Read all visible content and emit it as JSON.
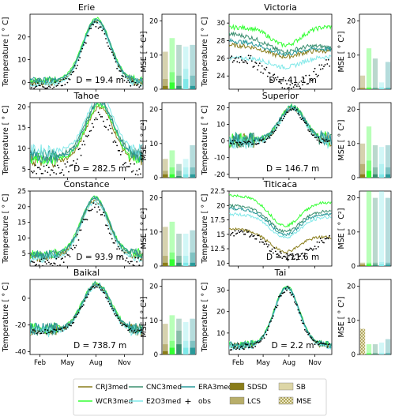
{
  "figure": {
    "temp_ylabel": "Temperature [ ° C]",
    "mse_ylabel": "MSE [ ° C²]",
    "month_ticks": [
      "Feb",
      "May",
      "Aug",
      "Nov"
    ]
  },
  "legend": {
    "items": [
      {
        "label": "CRJ3med",
        "kind": "line",
        "color": "#8a7d1a"
      },
      {
        "label": "WCR3med",
        "kind": "line",
        "color": "#33ff33"
      },
      {
        "label": "CNC3med",
        "kind": "line",
        "color": "#3a8f6f"
      },
      {
        "label": "E2O3med",
        "kind": "line",
        "color": "#7fe8e8"
      },
      {
        "label": "ERA3med",
        "kind": "line",
        "color": "#2a9a9a"
      },
      {
        "label": "obs",
        "kind": "plus",
        "color": "#000000"
      },
      {
        "label": "SDSD",
        "kind": "bar",
        "color": "#8a7d1a"
      },
      {
        "label": "LCS",
        "kind": "bar",
        "color": "#b8ae6a"
      },
      {
        "label": "SB",
        "kind": "bar",
        "color": "#ddd6a6"
      },
      {
        "label": "MSE",
        "kind": "hatch",
        "color": "#eeeac8"
      }
    ]
  },
  "chart_data": [
    {
      "type": "line",
      "title": "Erie",
      "annotation": "D = 19.4 m",
      "xticks": [
        "Feb",
        "May",
        "Aug",
        "Nov"
      ],
      "ylim": [
        -3,
        30
      ],
      "yticks": [
        0,
        10,
        20
      ],
      "min": 0,
      "peak": 27,
      "peak_day": 215,
      "model_offsets": [
        0,
        1.2,
        0.4,
        -0.5,
        0.8
      ],
      "obs_offset": -1.5
    },
    {
      "type": "line",
      "title": "Victoria",
      "annotation": "D = 41.1 m",
      "xticks": [
        "Feb",
        "May",
        "Aug",
        "Nov"
      ],
      "ylim": [
        22.5,
        31
      ],
      "yticks": [
        24,
        26,
        28,
        30
      ],
      "series_levels": [
        {
          "name": "CRJ3med",
          "start": 27.5,
          "dip": 26.2,
          "end": 26.8
        },
        {
          "name": "WCR3med",
          "start": 29.5,
          "dip": 27.5,
          "end": 29.6
        },
        {
          "name": "CNC3med",
          "start": 28.8,
          "dip": 26.8,
          "end": 27.2
        },
        {
          "name": "E2O3med",
          "start": 26.0,
          "dip": 25.0,
          "end": 26.2
        },
        {
          "name": "ERA3med",
          "start": 28.0,
          "dip": 26.5,
          "end": 27.0
        }
      ],
      "obs_range": [
        23.0,
        26.0
      ]
    },
    {
      "type": "line",
      "title": "Tahoe",
      "annotation": "D = 282.5 m",
      "xticks": [
        "Feb",
        "May",
        "Aug",
        "Nov"
      ],
      "ylim": [
        3,
        21
      ],
      "yticks": [
        5,
        10,
        15,
        20
      ],
      "min": 7,
      "peak": 20,
      "peak_day": 225,
      "model_offsets": [
        0,
        0.5,
        1.5,
        2.5,
        1.0
      ],
      "obs_offset": -2.5
    },
    {
      "type": "line",
      "title": "Superior",
      "annotation": "D = 146.7 m",
      "xticks": [
        "Feb",
        "May",
        "Aug",
        "Nov"
      ],
      "ylim": [
        -22,
        23
      ],
      "yticks": [
        -20,
        -10,
        0,
        10,
        20
      ],
      "min": 0,
      "peak": 20,
      "peak_day": 225,
      "model_offsets": [
        0,
        0.8,
        0.4,
        -0.6,
        0.6
      ],
      "obs_offset": -1.0
    },
    {
      "type": "line",
      "title": "Constance",
      "annotation": "D = 93.9 m",
      "xticks": [
        "Feb",
        "May",
        "Aug",
        "Nov"
      ],
      "ylim": [
        1,
        25
      ],
      "yticks": [
        5,
        10,
        15,
        20,
        25
      ],
      "min": 4,
      "peak": 22,
      "peak_day": 210,
      "model_offsets": [
        0,
        1.0,
        0.5,
        -0.5,
        0.8
      ],
      "obs_offset": -2.0
    },
    {
      "type": "line",
      "title": "Titicaca",
      "annotation": "D = 111.6 m",
      "xticks": [
        "Feb",
        "May",
        "Aug",
        "Nov"
      ],
      "ylim": [
        9.5,
        22.5
      ],
      "yticks": [
        10.0,
        12.5,
        15.0,
        17.5,
        20.0,
        22.5
      ],
      "series_levels": [
        {
          "name": "CRJ3med",
          "start": 16.0,
          "dip": 12.0,
          "end": 14.5
        },
        {
          "name": "WCR3med",
          "start": 21.8,
          "dip": 16.5,
          "end": 20.5
        },
        {
          "name": "CNC3med",
          "start": 20.0,
          "dip": 15.5,
          "end": 19.0
        },
        {
          "name": "E2O3med",
          "start": 18.5,
          "dip": 14.5,
          "end": 18.0
        },
        {
          "name": "ERA3med",
          "start": 19.5,
          "dip": 15.0,
          "end": 18.5
        }
      ],
      "obs_range": [
        11.0,
        15.5
      ]
    },
    {
      "type": "line",
      "title": "Baikal",
      "annotation": "D = 738.7 m",
      "xticks": [
        "Feb",
        "May",
        "Aug",
        "Nov"
      ],
      "ylim": [
        -42,
        14
      ],
      "yticks": [
        -40,
        -20,
        0
      ],
      "min": -24,
      "peak": 10,
      "peak_day": 215,
      "model_offsets": [
        0,
        1.5,
        0.5,
        -1.0,
        1.0
      ],
      "obs_offset": -1.0
    },
    {
      "type": "line",
      "title": "Tai",
      "annotation": "D = 2.2 m",
      "xticks": [
        "Feb",
        "May",
        "Aug",
        "Nov"
      ],
      "ylim": [
        0,
        35
      ],
      "yticks": [
        10,
        20,
        30
      ],
      "min": 4,
      "peak": 31,
      "peak_day": 205,
      "model_offsets": [
        0,
        0.8,
        0.3,
        -0.4,
        0.5
      ],
      "obs_offset": -0.5
    },
    {
      "type": "bar",
      "lake": "Erie",
      "ylim": [
        0,
        22
      ],
      "yticks": [
        0,
        10,
        20
      ],
      "values": [
        11.0,
        15.0,
        13.0,
        12.5,
        13.0
      ],
      "sdsd": [
        1,
        2,
        1,
        3,
        1
      ],
      "lcs": [
        3,
        5,
        4,
        6,
        4
      ]
    },
    {
      "type": "bar",
      "lake": "Victoria",
      "ylim": [
        0,
        22
      ],
      "yticks": [
        0,
        10,
        20
      ],
      "values": [
        4.0,
        12.0,
        9.0,
        2.0,
        8.0
      ],
      "sdsd": [
        0.2,
        0.3,
        0.2,
        0.3,
        0.2
      ],
      "lcs": [
        0.5,
        0.6,
        0.5,
        0.6,
        0.5
      ]
    },
    {
      "type": "bar",
      "lake": "Tahoe",
      "ylim": [
        0,
        22
      ],
      "yticks": [
        0,
        10,
        20
      ],
      "values": [
        5.5,
        8.0,
        4.0,
        5.5,
        9.5
      ],
      "sdsd": [
        1,
        1,
        0.5,
        1,
        1
      ],
      "lcs": [
        2,
        3,
        2,
        3,
        3
      ]
    },
    {
      "type": "bar",
      "lake": "Superior",
      "ylim": [
        0,
        22
      ],
      "yticks": [
        0,
        10,
        20
      ],
      "values": [
        10.0,
        15.0,
        9.5,
        9.0,
        9.5
      ],
      "sdsd": [
        1,
        2,
        1,
        1,
        1
      ],
      "lcs": [
        4,
        5,
        3,
        4,
        3
      ]
    },
    {
      "type": "bar",
      "lake": "Constance",
      "ylim": [
        0,
        22
      ],
      "yticks": [
        0,
        10,
        20
      ],
      "values": [
        11.5,
        13.0,
        9.5,
        9.5,
        10.5
      ],
      "sdsd": [
        1,
        2,
        1,
        1,
        1
      ],
      "lcs": [
        3,
        4,
        3,
        3,
        4
      ]
    },
    {
      "type": "bar",
      "lake": "Titicaca",
      "ylim": [
        0,
        22
      ],
      "yticks": [
        0,
        10,
        20
      ],
      "values": [
        1.0,
        23.0,
        20.0,
        22.0,
        20.0
      ],
      "sdsd": [
        0.3,
        0.5,
        0.4,
        0.5,
        0.4
      ],
      "lcs": [
        0.7,
        1.0,
        1.0,
        1.2,
        1.0
      ]
    },
    {
      "type": "bar",
      "lake": "Baikal",
      "ylim": [
        0,
        22
      ],
      "yticks": [
        0,
        10,
        20
      ],
      "values": [
        9.0,
        11.5,
        10.5,
        9.5,
        10.5
      ],
      "sdsd": [
        1,
        2,
        3,
        2,
        2
      ],
      "lcs": [
        3,
        4,
        7,
        4,
        4
      ]
    },
    {
      "type": "bar",
      "lake": "Tai",
      "ylim": [
        0,
        22
      ],
      "yticks": [
        0,
        10,
        20
      ],
      "values": [
        7.5,
        3.0,
        3.0,
        3.5,
        4.5
      ],
      "sdsd": [
        0.2,
        0.2,
        0.2,
        0.2,
        0.2
      ],
      "lcs": [
        0.5,
        0.5,
        0.5,
        0.5,
        0.5
      ]
    }
  ]
}
